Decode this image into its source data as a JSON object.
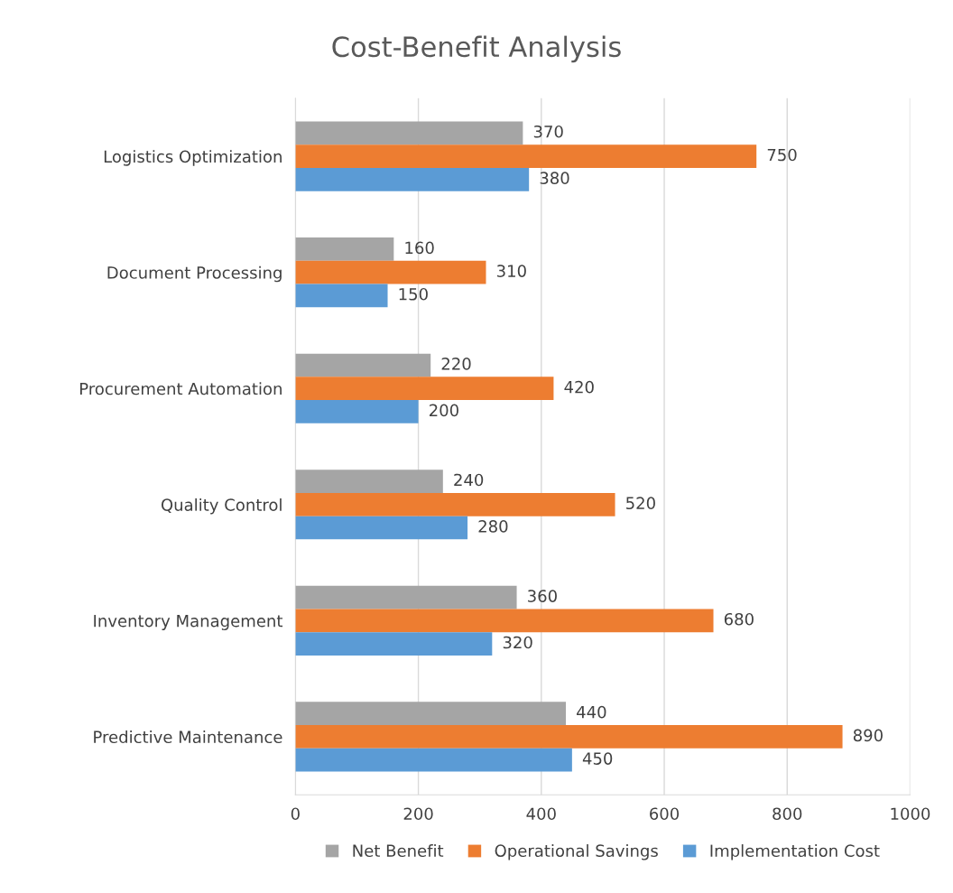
{
  "chart_data": {
    "type": "bar",
    "orientation": "horizontal",
    "title": "Cost-Benefit Analysis",
    "categories": [
      "Logistics Optimization",
      "Document Processing",
      "Procurement Automation",
      "Quality Control",
      "Inventory Management",
      "Predictive Maintenance"
    ],
    "series": [
      {
        "name": "Net Benefit",
        "color": "#a5a5a5",
        "values": [
          370,
          160,
          220,
          240,
          360,
          440
        ]
      },
      {
        "name": "Operational Savings",
        "color": "#ed7d31",
        "values": [
          750,
          310,
          420,
          520,
          680,
          890
        ]
      },
      {
        "name": "Implementation Cost",
        "color": "#5b9bd5",
        "values": [
          380,
          150,
          200,
          280,
          320,
          450
        ]
      }
    ],
    "xlim": [
      0,
      1000
    ],
    "xticks": [
      0,
      200,
      400,
      600,
      800,
      1000
    ],
    "grid": "x",
    "legend": "bottom",
    "data_labels": true
  }
}
